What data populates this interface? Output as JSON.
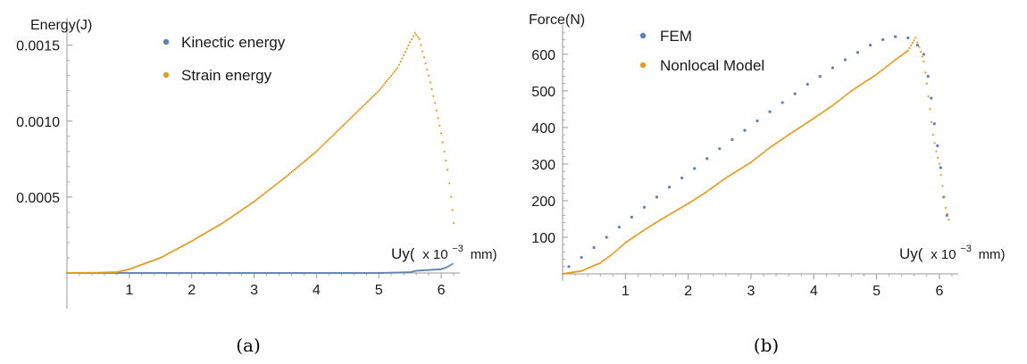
{
  "panels": [
    {
      "caption": "(a)",
      "ylabel": "Energy(J)",
      "xlabel_prefix": "Uy(",
      "xlabel_mult": "x 10",
      "xlabel_exp": "−3",
      "xlabel_unit": "mm)",
      "legend": [
        "Kinectic energy",
        "Strain energy"
      ]
    },
    {
      "caption": "(b)",
      "ylabel": "Force(N)",
      "xlabel_prefix": "Uy(",
      "xlabel_mult": "x 10",
      "xlabel_exp": "−3",
      "xlabel_unit": "mm)",
      "legend": [
        "FEM",
        "Nonlocal Model"
      ]
    }
  ],
  "colors": {
    "blue": "#5e81b5",
    "orange": "#e19c24",
    "axis": "#999999"
  },
  "chart_data": [
    {
      "type": "scatter",
      "xlim": [
        0,
        6.3
      ],
      "ylim": [
        0,
        0.00168
      ],
      "xticks": [
        1,
        2,
        3,
        4,
        5,
        6
      ],
      "xtick_labels": [
        "1",
        "2",
        "3",
        "4",
        "5",
        "6"
      ],
      "yticks": [
        0.0005,
        0.001,
        0.0015
      ],
      "ytick_labels": [
        "0.0005",
        "0.0010",
        "0.0015"
      ],
      "legend_position": "top-center",
      "series": [
        {
          "name": "Kinectic energy",
          "color": "#5e81b5",
          "points": [
            [
              0.0,
              0.0
            ],
            [
              1.0,
              0.0
            ],
            [
              2.0,
              0.0
            ],
            [
              3.0,
              0.0
            ],
            [
              4.0,
              0.0
            ],
            [
              5.0,
              0.0
            ],
            [
              5.5,
              5e-06
            ],
            [
              5.6,
              1.5e-05
            ],
            [
              5.8,
              2e-05
            ],
            [
              6.0,
              2.5e-05
            ],
            [
              6.1,
              4e-05
            ],
            [
              6.18,
              6e-05
            ]
          ]
        },
        {
          "name": "Strain energy",
          "color": "#e19c24",
          "points": [
            [
              0.0,
              0.0
            ],
            [
              0.5,
              2e-06
            ],
            [
              0.8,
              6e-06
            ],
            [
              1.0,
              2.5e-05
            ],
            [
              1.5,
              0.0001
            ],
            [
              2.0,
              0.00021
            ],
            [
              2.5,
              0.00033
            ],
            [
              3.0,
              0.00047
            ],
            [
              3.5,
              0.00063
            ],
            [
              4.0,
              0.0008
            ],
            [
              4.5,
              0.001
            ],
            [
              5.0,
              0.0012
            ],
            [
              5.3,
              0.00135
            ],
            [
              5.5,
              0.00152
            ],
            [
              5.58,
              0.00158
            ],
            [
              5.65,
              0.00154
            ],
            [
              5.8,
              0.0013
            ],
            [
              5.9,
              0.00112
            ],
            [
              6.0,
              0.00092
            ],
            [
              6.1,
              0.00068
            ],
            [
              6.16,
              0.0005
            ],
            [
              6.2,
              0.00033
            ]
          ]
        }
      ]
    },
    {
      "type": "scatter",
      "xlim": [
        0,
        6.3
      ],
      "ylim": [
        0,
        680
      ],
      "xticks": [
        1,
        2,
        3,
        4,
        5,
        6
      ],
      "xtick_labels": [
        "1",
        "2",
        "3",
        "4",
        "5",
        "6"
      ],
      "yticks": [
        100,
        200,
        300,
        400,
        500,
        600
      ],
      "ytick_labels": [
        "100",
        "200",
        "300",
        "400",
        "500",
        "600"
      ],
      "legend_position": "top-left",
      "series": [
        {
          "name": "FEM",
          "color": "#5e81b5",
          "points": [
            [
              0.1,
              20
            ],
            [
              0.3,
              45
            ],
            [
              0.5,
              72
            ],
            [
              0.7,
              100
            ],
            [
              0.9,
              128
            ],
            [
              1.1,
              155
            ],
            [
              1.3,
              182
            ],
            [
              1.5,
              210
            ],
            [
              1.7,
              237
            ],
            [
              1.9,
              262
            ],
            [
              2.1,
              288
            ],
            [
              2.3,
              315
            ],
            [
              2.5,
              342
            ],
            [
              2.7,
              367
            ],
            [
              2.9,
              392
            ],
            [
              3.1,
              418
            ],
            [
              3.3,
              443
            ],
            [
              3.5,
              468
            ],
            [
              3.7,
              492
            ],
            [
              3.9,
              518
            ],
            [
              4.1,
              540
            ],
            [
              4.3,
              563
            ],
            [
              4.5,
              585
            ],
            [
              4.7,
              605
            ],
            [
              4.9,
              625
            ],
            [
              5.1,
              640
            ],
            [
              5.3,
              648
            ],
            [
              5.5,
              645
            ],
            [
              5.65,
              625
            ],
            [
              5.75,
              600
            ],
            [
              5.82,
              540
            ],
            [
              5.87,
              480
            ],
            [
              5.92,
              410
            ],
            [
              5.97,
              350
            ],
            [
              6.02,
              290
            ],
            [
              6.07,
              210
            ],
            [
              6.12,
              160
            ]
          ]
        },
        {
          "name": "Nonlocal Model",
          "color": "#e19c24",
          "points": [
            [
              0.0,
              0
            ],
            [
              0.3,
              8
            ],
            [
              0.6,
              30
            ],
            [
              0.8,
              55
            ],
            [
              1.0,
              85
            ],
            [
              1.3,
              120
            ],
            [
              1.6,
              152
            ],
            [
              2.0,
              192
            ],
            [
              2.3,
              225
            ],
            [
              2.6,
              262
            ],
            [
              3.0,
              305
            ],
            [
              3.3,
              345
            ],
            [
              3.6,
              380
            ],
            [
              4.0,
              425
            ],
            [
              4.3,
              460
            ],
            [
              4.6,
              500
            ],
            [
              5.0,
              545
            ],
            [
              5.3,
              585
            ],
            [
              5.5,
              610
            ],
            [
              5.62,
              645
            ],
            [
              5.68,
              620
            ],
            [
              5.75,
              580
            ],
            [
              5.8,
              520
            ],
            [
              5.85,
              450
            ],
            [
              5.9,
              380
            ],
            [
              5.95,
              335
            ],
            [
              6.0,
              300
            ],
            [
              6.05,
              240
            ],
            [
              6.1,
              180
            ],
            [
              6.15,
              148
            ]
          ]
        }
      ]
    }
  ]
}
